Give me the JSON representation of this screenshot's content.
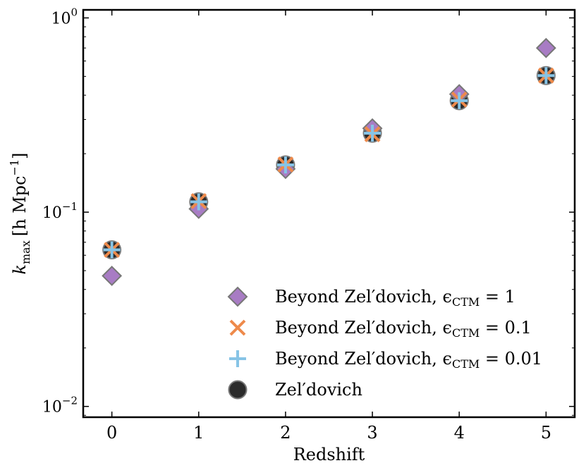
{
  "chart_data": {
    "type": "scatter",
    "title": "",
    "xlabel": "Redshift",
    "ylabel_main": "k",
    "ylabel_sub": "max",
    "ylabel_unit_prefix": "[h Mpc",
    "ylabel_unit_exp": "−1",
    "ylabel_unit_suffix": "]",
    "yscale": "log",
    "xlim": [
      -0.33,
      5.33
    ],
    "ylim": [
      0.0088,
      1.1
    ],
    "x_ticks": [
      {
        "value": 0,
        "label": "0"
      },
      {
        "value": 1,
        "label": "1"
      },
      {
        "value": 2,
        "label": "2"
      },
      {
        "value": 3,
        "label": "3"
      },
      {
        "value": 4,
        "label": "4"
      },
      {
        "value": 5,
        "label": "5"
      }
    ],
    "y_ticks": [
      {
        "value": 0.01,
        "base": "10",
        "exp": "−2"
      },
      {
        "value": 0.1,
        "base": "10",
        "exp": "−1"
      },
      {
        "value": 1,
        "base": "10",
        "exp": "0"
      }
    ],
    "legend_position": "lower-right",
    "series": [
      {
        "name": "Zel′dovich",
        "marker": "circle",
        "color": "#2b2b2b",
        "edge": "#777777",
        "x": [
          0,
          1,
          2,
          3,
          4,
          5
        ],
        "y": [
          0.064,
          0.113,
          0.175,
          0.255,
          0.375,
          0.505
        ]
      },
      {
        "name": "Beyond Zel′dovich, ϵCTM = 1",
        "label_prefix": "Beyond Zel′dovich, ϵ",
        "label_sub": "CTM",
        "label_suffix": " = 1",
        "marker": "diamond",
        "color": "#a87cc4",
        "edge": "#777777",
        "x": [
          0,
          1,
          2,
          3,
          4,
          5
        ],
        "y": [
          0.047,
          0.104,
          0.167,
          0.27,
          0.405,
          0.7
        ]
      },
      {
        "name": "Beyond Zel′dovich, ϵCTM = 0.1",
        "label_prefix": "Beyond Zel′dovich, ϵ",
        "label_sub": "CTM",
        "label_suffix": " = 0.1",
        "marker": "x",
        "color": "#ee8a4b",
        "x": [
          0,
          1,
          2,
          3,
          4,
          5
        ],
        "y": [
          0.064,
          0.114,
          0.176,
          0.252,
          0.38,
          0.505
        ]
      },
      {
        "name": "Beyond Zel′dovich, ϵCTM = 0.01",
        "label_prefix": "Beyond Zel′dovich, ϵ",
        "label_sub": "CTM",
        "label_suffix": " = 0.01",
        "marker": "plus",
        "color": "#87c4e6",
        "x": [
          0,
          1,
          2,
          3,
          4,
          5
        ],
        "y": [
          0.064,
          0.113,
          0.175,
          0.255,
          0.375,
          0.505
        ]
      }
    ],
    "legend_order": [
      1,
      2,
      3,
      0
    ]
  }
}
